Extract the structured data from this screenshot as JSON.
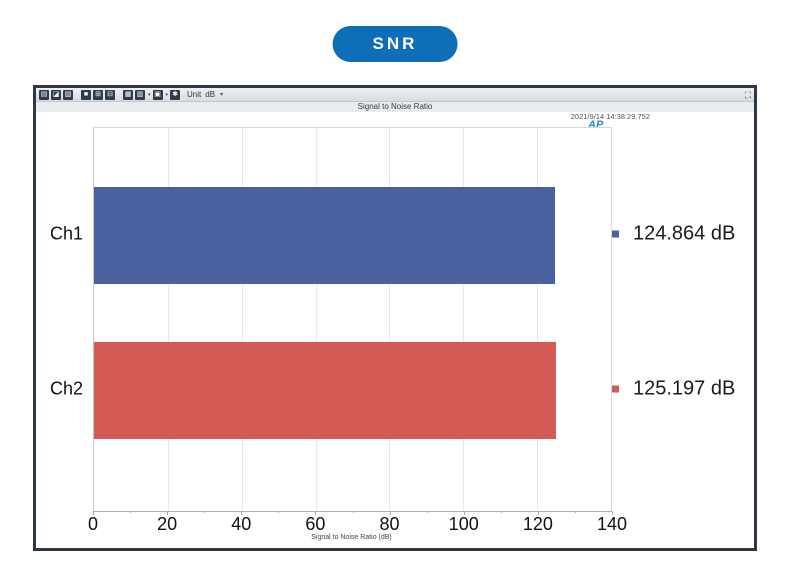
{
  "pill": {
    "label": "SNR",
    "color": "#0e6fb8"
  },
  "window": {
    "border_color": "#2e3744",
    "toolbar": {
      "icons": [
        {
          "name": "graph-view-icon",
          "glyph": "▤",
          "dropdown": false
        },
        {
          "name": "zoom-view-icon",
          "glyph": "◪",
          "dropdown": false
        },
        {
          "name": "edit-view-icon",
          "glyph": "▨",
          "dropdown": false
        },
        {
          "name": "single-pane-icon",
          "glyph": "■",
          "dropdown": false
        },
        {
          "name": "grid-2x2-pane-icon",
          "glyph": "⊞",
          "dropdown": false
        },
        {
          "name": "grid-3x2-pane-icon",
          "glyph": "⊟",
          "dropdown": false
        },
        {
          "name": "table-icon",
          "glyph": "▦",
          "dropdown": false
        },
        {
          "name": "layout-dropdown-icon",
          "glyph": "▥",
          "dropdown": true
        },
        {
          "name": "annotation-dropdown-icon",
          "glyph": "▣",
          "dropdown": true
        },
        {
          "name": "settings-icon",
          "glyph": "✱",
          "dropdown": false
        }
      ],
      "unit_label": "Unit",
      "unit_value": "dB",
      "unit_caret": "▾",
      "window_icon_glyph": "⛶"
    },
    "title": "Signal to Noise Ratio",
    "timestamp": "2021/9/14 14:38:29.752",
    "logo_text": "AP"
  },
  "chart_data": {
    "type": "bar",
    "orientation": "horizontal",
    "title": "Signal to Noise Ratio",
    "categories": [
      "Ch1",
      "Ch2"
    ],
    "values": [
      124.864,
      125.197
    ],
    "value_labels": [
      "124.864 dB",
      "125.197 dB"
    ],
    "series_colors": [
      "#4a61a0",
      "#d45b55"
    ],
    "xlabel": "Signal to Noise Ratio (dB)",
    "xlim": [
      0,
      140
    ],
    "xticks": [
      0,
      20,
      40,
      60,
      80,
      100,
      120,
      140
    ],
    "minor_tick_step": 10,
    "grid": true,
    "legend_position": "right",
    "gridline_color": "#e5e8ea"
  }
}
